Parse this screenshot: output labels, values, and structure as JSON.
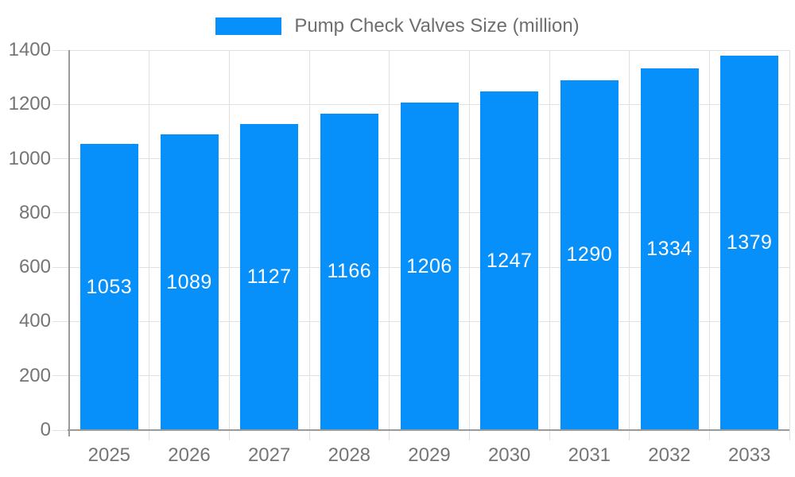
{
  "chart_data": {
    "type": "bar",
    "title": "Pump Check Valves Size (million)",
    "categories": [
      "2025",
      "2026",
      "2027",
      "2028",
      "2029",
      "2030",
      "2031",
      "2032",
      "2033"
    ],
    "series": [
      {
        "name": "Pump Check Valves Size (million)",
        "values": [
          1053,
          1089,
          1127,
          1166,
          1206,
          1247,
          1290,
          1334,
          1379
        ]
      }
    ],
    "value_labels_shown": true,
    "xlabel": "",
    "ylabel": "",
    "ylim": [
      0,
      1400
    ],
    "yticks": [
      0,
      200,
      400,
      600,
      800,
      1000,
      1200,
      1400
    ],
    "grid": true,
    "legend_position": "top-center",
    "colors": {
      "bar": "#0890fa",
      "value_label": "#ffffff",
      "axis_tick_label": "#757575",
      "legend_text": "#6e6e6e",
      "gridline": "#e0e0e0",
      "axis_line": "#9a9a9a",
      "background": "#ffffff"
    }
  }
}
